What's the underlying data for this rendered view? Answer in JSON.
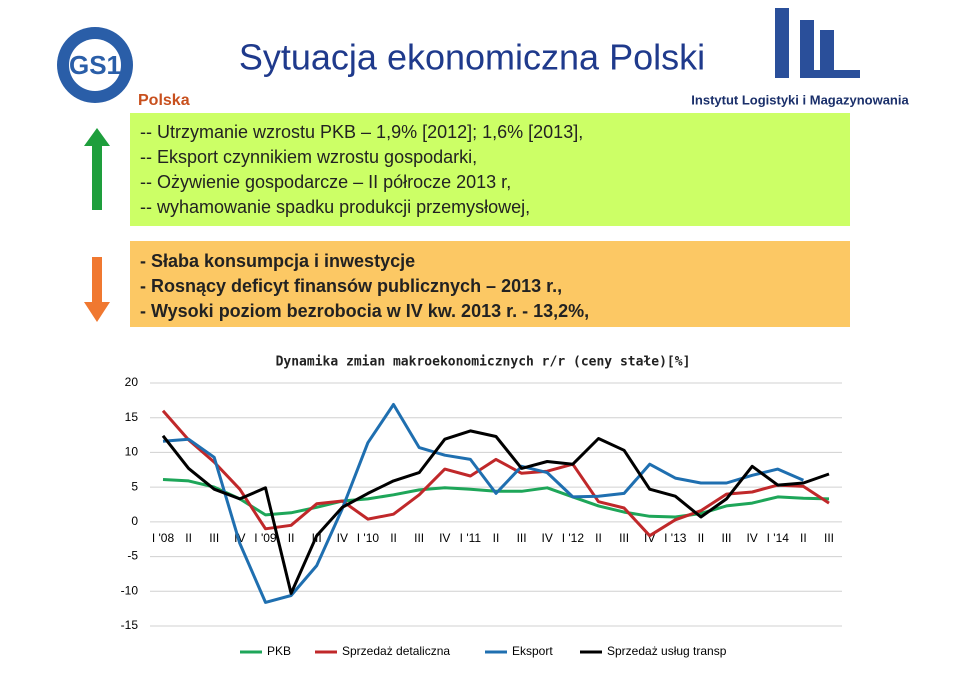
{
  "slide": {
    "title": "Sytuacja ekonomiczna Polski",
    "logo_left": {
      "mark": "GS1",
      "caption": "Polska"
    },
    "logo_right": {
      "caption": "Instytut Logistyki i Magazynowania"
    },
    "positives": [
      "-- Utrzymanie wzrostu PKB – 1,9% [2012]; 1,6% [2013],",
      "-- Eksport czynnikiem wzrostu gospodarki,",
      "-- Ożywienie gospodarcze – II półrocze 2013 r,",
      "-- wyhamowanie spadku produkcji przemysłowej,"
    ],
    "negatives": [
      "- Słaba konsumpcja i inwestycje",
      "- Rosnący deficyt finansów publicznych – 2013 r.,",
      "- Wysoki poziom bezrobocia w IV kw. 2013 r. - 13,2%,"
    ]
  },
  "chart_data": {
    "type": "line",
    "title": "Dynamika zmian makroekonomicznych r/r (ceny stałe)[%]",
    "categories": [
      "I '08",
      "II",
      "III",
      "IV",
      "I '09",
      "II",
      "III",
      "IV",
      "I '10",
      "II",
      "III",
      "IV",
      "I '11",
      "II",
      "III",
      "IV",
      "I '12",
      "II",
      "III",
      "IV",
      "I '13",
      "II",
      "III",
      "IV",
      "I '14",
      "II",
      "III"
    ],
    "series": [
      {
        "name": "PKB",
        "color": "#1ea659",
        "values": [
          6.1,
          5.9,
          5.0,
          3.3,
          1.0,
          1.3,
          2.1,
          3.0,
          3.3,
          3.9,
          4.6,
          4.9,
          4.7,
          4.4,
          4.4,
          4.9,
          3.6,
          2.3,
          1.4,
          0.8,
          0.7,
          1.2,
          2.3,
          2.7,
          3.6,
          3.4,
          3.3
        ]
      },
      {
        "name": "Sprzedaż detaliczna",
        "color": "#c0282a",
        "values": [
          16,
          11.8,
          8.6,
          4.7,
          -1.0,
          -0.5,
          2.6,
          3.0,
          0.4,
          1.1,
          3.9,
          7.6,
          6.6,
          9.0,
          7.0,
          7.3,
          8.3,
          2.9,
          2.0,
          -2.0,
          0.3,
          1.6,
          4.0,
          4.3,
          5.3,
          5.1,
          2.7
        ]
      },
      {
        "name": "Eksport",
        "color": "#1f6fb0",
        "values": [
          11.6,
          11.9,
          9.3,
          -3.1,
          -11.6,
          -10.6,
          -6.3,
          1.9,
          11.4,
          16.9,
          10.7,
          9.6,
          9.0,
          4.1,
          8.0,
          7.1,
          3.6,
          3.7,
          4.1,
          8.3,
          6.3,
          5.6,
          5.6,
          6.7,
          7.6,
          6.0,
          null
        ]
      },
      {
        "name": "Sprzedaż usług transp",
        "color": "#000000",
        "values": [
          12.4,
          7.7,
          4.7,
          3.3,
          4.9,
          -10.3,
          -2.0,
          2.1,
          4.1,
          5.9,
          7.1,
          11.9,
          13.1,
          12.3,
          7.7,
          8.7,
          8.3,
          12.0,
          10.3,
          4.7,
          3.7,
          0.7,
          3.3,
          8.0,
          5.3,
          5.6,
          6.9
        ]
      }
    ],
    "ylim": [
      -15,
      20
    ],
    "yticks": [
      -15,
      -10,
      -5,
      0,
      5,
      10,
      15,
      20
    ],
    "grid": true,
    "legend": "bottom"
  }
}
